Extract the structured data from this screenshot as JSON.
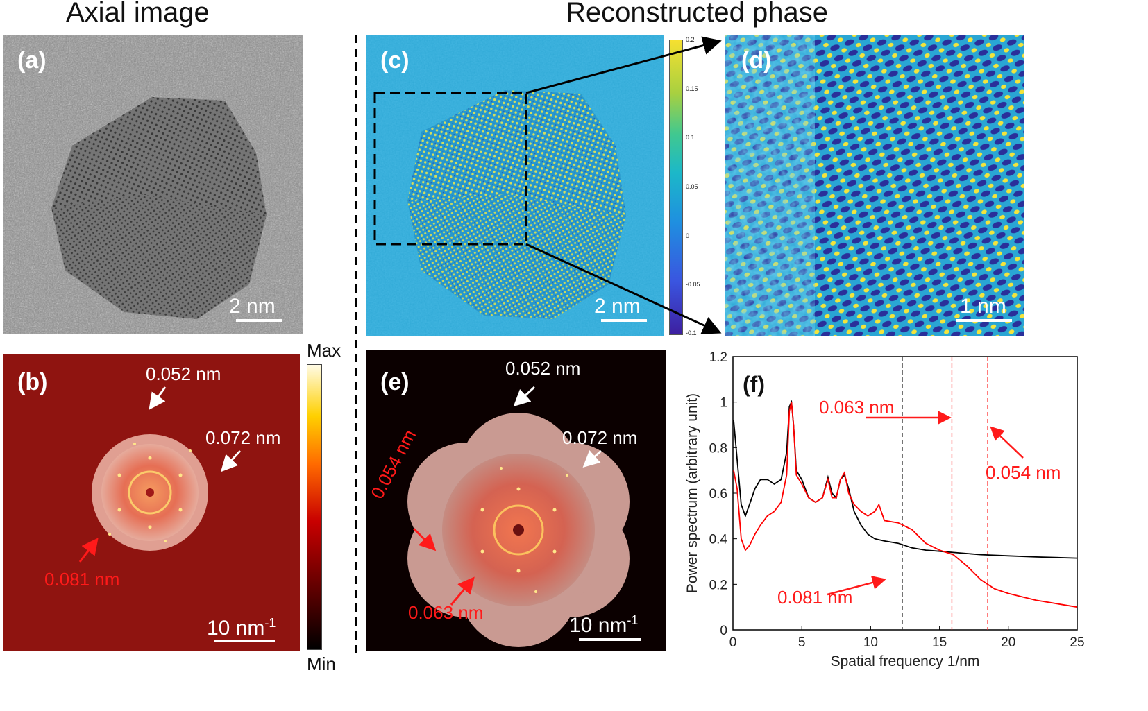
{
  "titles": {
    "left": "Axial image",
    "right": "Reconstructed phase"
  },
  "panels": {
    "a": "(a)",
    "b": "(b)",
    "c": "(c)",
    "d": "(d)",
    "e": "(e)",
    "f": "(f)"
  },
  "scalebars": {
    "a": "2 nm",
    "c": "2 nm",
    "d": "1 nm",
    "b": "10 nm",
    "e": "10 nm",
    "exp": "-1"
  },
  "fft_labels": {
    "b_052": "0.052 nm",
    "b_072": "0.072 nm",
    "b_081": "0.081 nm",
    "e_052": "0.052 nm",
    "e_072": "0.072 nm",
    "e_054": "0.054 nm",
    "e_063": "0.063 nm"
  },
  "colorbar_phase": {
    "ticks": [
      "0.2",
      "0.15",
      "0.1",
      "0.05",
      "0",
      "-0.05",
      "-0.1"
    ]
  },
  "colorbar_fft": {
    "max": "Max",
    "min": "Min"
  },
  "colors": {
    "red": "#ff1a1a",
    "black_curve": "#000000",
    "red_curve": "#ff0000",
    "phase_bg": "#2fa9d6"
  },
  "chart_data": {
    "type": "line",
    "title": "",
    "xlabel": "Spatial frequency 1/nm",
    "ylabel": "Power spectrum (arbitrary unit)",
    "xlim": [
      0,
      25
    ],
    "ylim": [
      0,
      1.2
    ],
    "xticks": [
      "0",
      "5",
      "10",
      "15",
      "20",
      "25"
    ],
    "yticks": [
      "0",
      "0.2",
      "0.4",
      "0.6",
      "0.8",
      "1",
      "1.2"
    ],
    "series": [
      {
        "name": "axial image",
        "color": "#000000",
        "x": [
          0.05,
          0.3,
          0.6,
          0.9,
          1.2,
          1.6,
          2.0,
          2.5,
          3.0,
          3.5,
          3.9,
          4.1,
          4.25,
          4.4,
          4.6,
          5.0,
          5.5,
          6.0,
          6.5,
          6.9,
          7.2,
          7.5,
          7.8,
          8.1,
          8.4,
          8.8,
          9.3,
          9.8,
          10.3,
          11.0,
          12.0,
          13.0,
          14.0,
          15.0,
          16.0,
          17.0,
          18.0,
          20.0,
          22.0,
          25.0
        ],
        "y": [
          0.92,
          0.75,
          0.55,
          0.5,
          0.55,
          0.62,
          0.66,
          0.66,
          0.64,
          0.66,
          0.78,
          0.98,
          1.0,
          0.9,
          0.7,
          0.66,
          0.58,
          0.56,
          0.58,
          0.67,
          0.6,
          0.58,
          0.66,
          0.68,
          0.62,
          0.52,
          0.46,
          0.42,
          0.4,
          0.39,
          0.38,
          0.36,
          0.35,
          0.345,
          0.34,
          0.335,
          0.33,
          0.325,
          0.32,
          0.315
        ]
      },
      {
        "name": "reconstructed phase",
        "color": "#ff0000",
        "x": [
          0.05,
          0.3,
          0.6,
          0.9,
          1.2,
          1.6,
          2.0,
          2.5,
          3.0,
          3.5,
          3.9,
          4.1,
          4.25,
          4.4,
          4.6,
          5.0,
          5.5,
          6.0,
          6.5,
          6.9,
          7.2,
          7.5,
          7.8,
          8.1,
          8.4,
          8.8,
          9.3,
          9.8,
          10.3,
          10.6,
          11.0,
          12.0,
          13.0,
          14.0,
          15.0,
          16.0,
          17.0,
          18.0,
          19.0,
          20.0,
          22.0,
          25.0
        ],
        "y": [
          0.7,
          0.62,
          0.4,
          0.35,
          0.37,
          0.42,
          0.46,
          0.5,
          0.52,
          0.56,
          0.68,
          0.96,
          1.0,
          0.9,
          0.68,
          0.64,
          0.58,
          0.56,
          0.58,
          0.66,
          0.58,
          0.58,
          0.66,
          0.69,
          0.6,
          0.55,
          0.52,
          0.5,
          0.52,
          0.55,
          0.48,
          0.47,
          0.44,
          0.38,
          0.35,
          0.33,
          0.28,
          0.22,
          0.18,
          0.16,
          0.13,
          0.1
        ]
      }
    ],
    "reference_lines": [
      {
        "x": 12.3,
        "color": "black",
        "label": "0.081 nm"
      },
      {
        "x": 15.9,
        "color": "red",
        "label": "0.063 nm"
      },
      {
        "x": 18.5,
        "color": "red",
        "label": "0.054 nm"
      }
    ]
  }
}
